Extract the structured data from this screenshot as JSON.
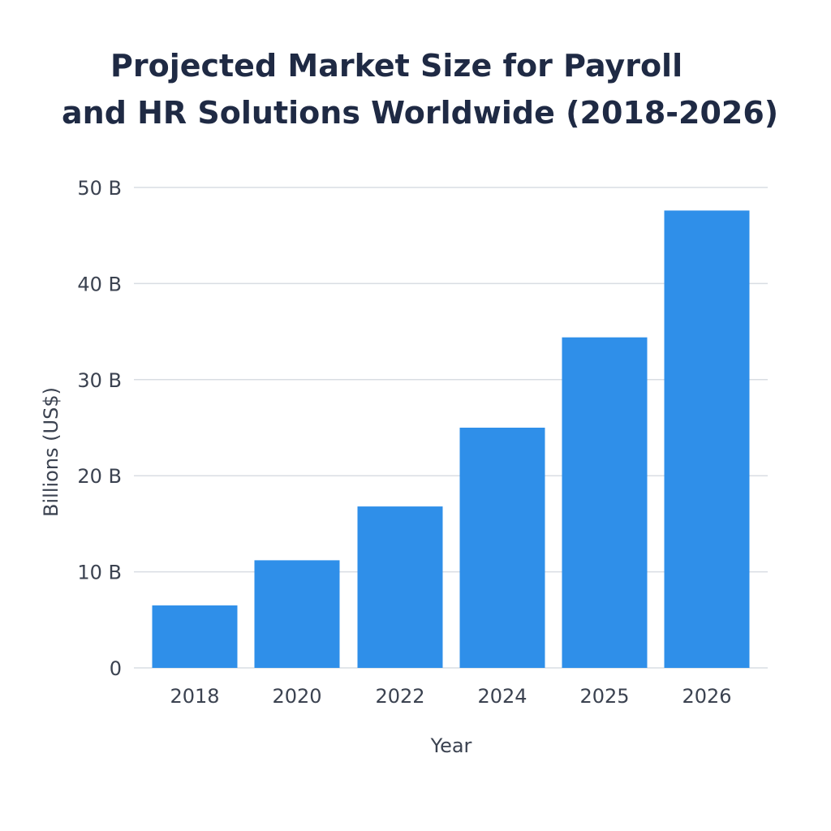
{
  "chart_data": {
    "type": "bar",
    "title_lines": [
      "Projected Market Size for Payroll",
      "and HR Solutions Worldwide (2018-2026)"
    ],
    "xlabel": "Year",
    "ylabel": "Billions (US$)",
    "categories": [
      "2018",
      "2020",
      "2022",
      "2024",
      "2025",
      "2026"
    ],
    "values": [
      6.5,
      11.2,
      16.8,
      25.0,
      34.4,
      47.6
    ],
    "ylim": [
      0,
      50
    ],
    "yticks": [
      0,
      10,
      20,
      30,
      40,
      50
    ],
    "ytick_labels": [
      "0",
      "10 B",
      "20 B",
      "30 B",
      "40 B",
      "50 B"
    ],
    "grid": true,
    "colors": {
      "bar": "#2f8fe9",
      "title": "#1f2a44",
      "grid": "#d9dde3"
    }
  }
}
